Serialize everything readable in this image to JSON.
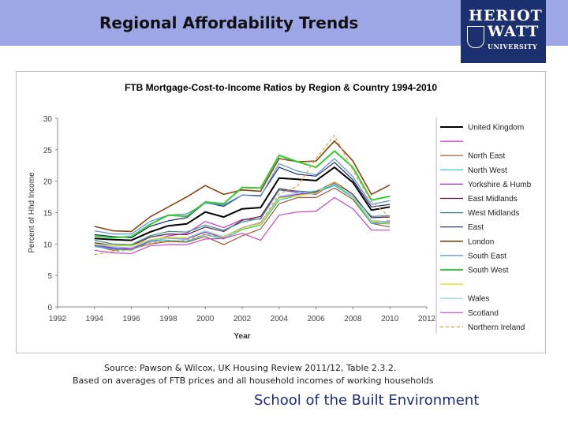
{
  "slide": {
    "title": "Regional Affordability Trends",
    "footer": "School of the Built Environment",
    "source_line1": "Source: Pawson & Wilcox, UK Housing Review 2011/12, Table 2.3.2.",
    "source_line2": "Based on averages of FTB prices and all household incomes of working households"
  },
  "logo": {
    "line1": "HERIOT",
    "line2": "WATT",
    "line3": "UNIVERSITY",
    "background": "#1c2f6e"
  },
  "chart_data": {
    "type": "line",
    "title": "FTB Mortgage-Cost-to-Income Ratios by Region & Country 1994-2010",
    "xlabel": "Year",
    "ylabel": "Percent of Hhd Income",
    "xlim": [
      1992,
      2012
    ],
    "ylim": [
      0,
      30
    ],
    "xticks": [
      1992,
      1994,
      1996,
      1998,
      2000,
      2002,
      2004,
      2006,
      2008,
      2010,
      2012
    ],
    "yticks": [
      0,
      5,
      10,
      15,
      20,
      25,
      30
    ],
    "grid": "none",
    "legend_position": "right",
    "x": [
      1994,
      1995,
      1996,
      1997,
      1998,
      1999,
      2000,
      2001,
      2002,
      2003,
      2004,
      2005,
      2006,
      2007,
      2008,
      2009,
      2010
    ],
    "series": [
      {
        "name": "United Kingdom",
        "color": "#000000",
        "width": 2,
        "values": [
          10.9,
          10.7,
          10.6,
          11.9,
          12.9,
          13.2,
          15.1,
          14.3,
          15.6,
          15.8,
          20.5,
          20.3,
          20.1,
          22.2,
          19.8,
          15.4,
          15.9
        ]
      },
      {
        "name": "",
        "color": "#cc33cc",
        "width": 1.2,
        "values": [
          9.8,
          9.3,
          9.4,
          10.4,
          11.3,
          11.7,
          13.6,
          12.6,
          13.9,
          14.0,
          18.6,
          18.2,
          17.9,
          19.8,
          17.5,
          13.3,
          13.7
        ]
      },
      {
        "name": "North East",
        "color": "#a0522d",
        "width": 1.2,
        "values": [
          9.7,
          9.0,
          9.2,
          10.0,
          10.4,
          10.3,
          11.2,
          9.9,
          11.3,
          12.4,
          16.4,
          17.4,
          17.4,
          18.9,
          17.1,
          13.3,
          12.7
        ]
      },
      {
        "name": "North West",
        "color": "#20c8c8",
        "width": 1.2,
        "values": [
          9.6,
          9.2,
          9.0,
          10.4,
          10.6,
          10.4,
          11.5,
          10.8,
          12.3,
          13.0,
          17.0,
          17.7,
          18.2,
          19.3,
          17.4,
          13.3,
          13.2
        ]
      },
      {
        "name": "Yorkshire & Humb",
        "color": "#8a2be2",
        "width": 1.2,
        "values": [
          9.9,
          9.4,
          9.2,
          10.5,
          10.9,
          10.8,
          11.9,
          11.0,
          12.6,
          13.4,
          17.4,
          17.9,
          18.3,
          19.6,
          17.6,
          13.6,
          13.4
        ]
      },
      {
        "name": "East Midlands",
        "color": "#5a1a4a",
        "width": 1.2,
        "values": [
          10.2,
          9.8,
          9.7,
          11.1,
          11.6,
          11.5,
          12.7,
          12.0,
          13.8,
          14.4,
          18.8,
          18.4,
          18.3,
          19.9,
          17.9,
          14.2,
          14.3
        ]
      },
      {
        "name": "West Midlands",
        "color": "#2e8b8b",
        "width": 1.2,
        "values": [
          10.6,
          10.0,
          9.9,
          11.3,
          12.0,
          11.9,
          13.0,
          12.2,
          13.5,
          14.1,
          18.6,
          18.4,
          18.2,
          19.5,
          17.6,
          14.4,
          14.5
        ]
      },
      {
        "name": "East",
        "color": "#1c2a7a",
        "width": 1.2,
        "values": [
          11.5,
          11.2,
          11.0,
          12.8,
          13.7,
          14.2,
          16.6,
          16.0,
          17.8,
          17.7,
          22.2,
          21.1,
          20.8,
          23.0,
          20.2,
          15.9,
          16.3
        ]
      },
      {
        "name": "London",
        "color": "#8b4513",
        "width": 1.6,
        "values": [
          12.8,
          12.1,
          12.0,
          14.3,
          15.9,
          17.5,
          19.3,
          17.9,
          18.6,
          18.4,
          23.6,
          23.1,
          23.2,
          26.4,
          23.2,
          17.9,
          19.4
        ]
      },
      {
        "name": "South East",
        "color": "#5b8fd6",
        "width": 1.2,
        "values": [
          12.1,
          11.6,
          11.6,
          13.6,
          14.6,
          14.8,
          16.5,
          16.2,
          17.8,
          17.6,
          22.8,
          21.6,
          21.0,
          23.6,
          20.7,
          16.3,
          16.9
        ]
      },
      {
        "name": "South West",
        "color": "#33cc33",
        "width": 2,
        "values": [
          11.3,
          11.0,
          11.2,
          13.1,
          14.6,
          14.4,
          16.7,
          16.4,
          19.0,
          18.9,
          24.1,
          23.1,
          22.2,
          24.8,
          22.2,
          17.0,
          17.6
        ]
      },
      {
        "name": "",
        "color": "#dddd00",
        "width": 1.2,
        "values": [
          10.0,
          9.8,
          9.7,
          10.7,
          11.1,
          11.0,
          12.1,
          11.1,
          12.4,
          13.1,
          17.3,
          17.7,
          18.1,
          19.9,
          17.5,
          13.6,
          13.3
        ]
      },
      {
        "name": "Wales",
        "color": "#8ad8e8",
        "width": 1.2,
        "values": [
          9.9,
          9.6,
          9.4,
          10.6,
          10.9,
          10.9,
          12.1,
          11.2,
          12.6,
          13.3,
          17.6,
          18.1,
          18.5,
          19.5,
          17.6,
          13.8,
          13.5
        ]
      },
      {
        "name": "Scotland",
        "color": "#cc44cc",
        "width": 1.2,
        "values": [
          9.0,
          8.6,
          8.5,
          9.7,
          9.9,
          9.9,
          10.8,
          10.9,
          11.7,
          10.6,
          14.6,
          15.1,
          15.2,
          17.4,
          15.6,
          12.2,
          12.2
        ]
      },
      {
        "name": "Northern Ireland",
        "color": "#e8a030",
        "width": 1.2,
        "dash": "4,3",
        "values": [
          8.3,
          8.8,
          9.1,
          10.2,
          10.5,
          10.6,
          11.6,
          11.0,
          12.6,
          13.4,
          18.0,
          19.2,
          23.6,
          27.3,
          21.7,
          16.8,
          14.3
        ]
      }
    ]
  }
}
